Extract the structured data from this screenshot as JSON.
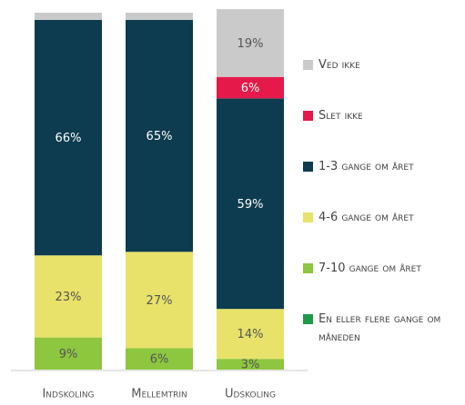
{
  "chart_data": {
    "type": "stacked_bar",
    "categories": [
      "Indskoling",
      "Mellemtrin",
      "Udskoling"
    ],
    "ylim": [
      0,
      100
    ],
    "series": [
      {
        "name": "En eller flere gange om måneden",
        "color": "#1f9a48",
        "values": [
          0,
          0,
          0
        ],
        "value_labels": [
          null,
          null,
          null
        ]
      },
      {
        "name": "7-10 gange om året",
        "color": "#8dc63f",
        "values": [
          9,
          6,
          3
        ],
        "value_labels": [
          "9%",
          "6%",
          "3%"
        ]
      },
      {
        "name": "4-6 gange om året",
        "color": "#e8e26a",
        "values": [
          23,
          27,
          14
        ],
        "value_labels": [
          "23%",
          "27%",
          "14%"
        ]
      },
      {
        "name": "1-3 gange om året",
        "color": "#0d3b4f",
        "values": [
          66,
          65,
          59
        ],
        "value_labels": [
          "66%",
          "65%",
          "59%"
        ]
      },
      {
        "name": "Slet ikke",
        "color": "#e5194a",
        "values": [
          0,
          0,
          6
        ],
        "value_labels": [
          null,
          null,
          "6%"
        ]
      },
      {
        "name": "Ved ikke",
        "color": "#cacaca",
        "values": [
          2,
          2,
          19
        ],
        "value_labels": [
          null,
          null,
          "19%"
        ]
      }
    ]
  }
}
